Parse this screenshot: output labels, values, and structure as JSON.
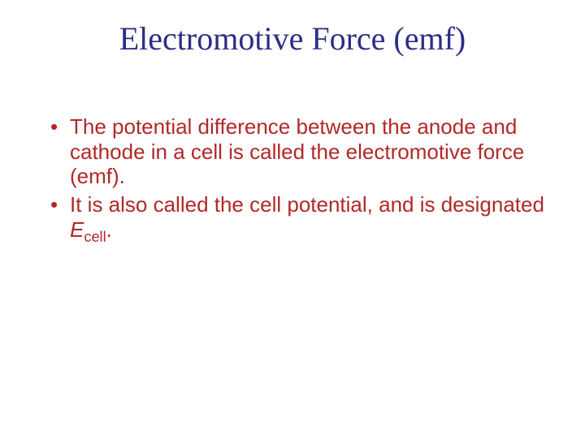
{
  "title": "Electromotive Force (emf)",
  "bullets": [
    {
      "pre": "The potential difference between the anode and cathode in a cell is called the ",
      "term": "electromotive force",
      "post": " (emf)."
    },
    {
      "pre": "It is also called the ",
      "term": "cell potential",
      "mid": ", and is designated ",
      "symbol": "E",
      "subscript": "cell",
      "post": "."
    }
  ],
  "colors": {
    "title": "#2b2e86",
    "body": "#b22828",
    "background": "#ffffff"
  },
  "fonts": {
    "title_family": "Comic Sans MS",
    "title_size_pt": 40,
    "body_family": "Arial",
    "body_size_pt": 26
  }
}
